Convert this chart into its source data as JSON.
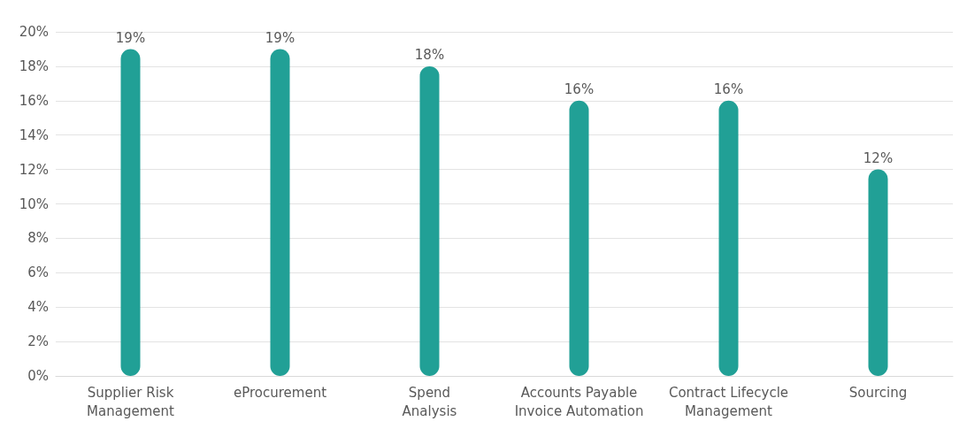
{
  "chart_data": {
    "type": "bar",
    "categories": [
      "Supplier Risk\nManagement",
      "eProcurement",
      "Spend\nAnalysis",
      "Accounts Payable\nInvoice Automation",
      "Contract Lifecycle\nManagement",
      "Sourcing"
    ],
    "values": [
      19,
      19,
      18,
      16,
      16,
      12
    ],
    "value_labels": [
      "19%",
      "19%",
      "18%",
      "16%",
      "16%",
      "12%"
    ],
    "color": "#21a096",
    "ylim": [
      0,
      20
    ],
    "yticks": [
      {
        "value": 0,
        "label": "0%"
      },
      {
        "value": 2,
        "label": "2%"
      },
      {
        "value": 4,
        "label": "4%"
      },
      {
        "value": 6,
        "label": "6%"
      },
      {
        "value": 8,
        "label": "8%"
      },
      {
        "value": 10,
        "label": "10%"
      },
      {
        "value": 12,
        "label": "12%"
      },
      {
        "value": 14,
        "label": "14%"
      },
      {
        "value": 16,
        "label": "16%"
      },
      {
        "value": 18,
        "label": "18%"
      },
      {
        "value": 20,
        "label": "20%"
      }
    ],
    "grid": "y"
  }
}
